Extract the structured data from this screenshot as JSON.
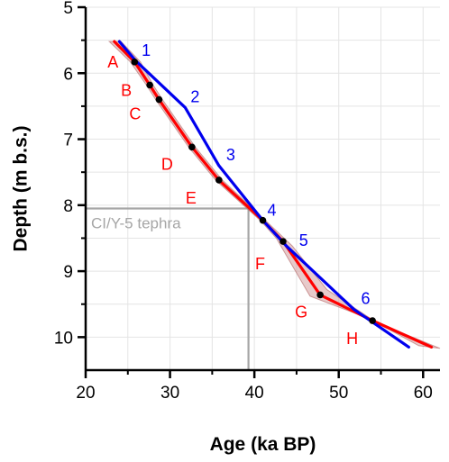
{
  "chart_data": {
    "type": "line",
    "xlabel": "Age (ka BP)",
    "ylabel": "Depth (m b.s.)",
    "xlim": [
      20,
      62
    ],
    "ylim": [
      5,
      10.5
    ],
    "y_inverted": true,
    "grid": true,
    "x_ticks": [
      20,
      30,
      40,
      50,
      60
    ],
    "y_ticks": [
      5,
      6,
      7,
      8,
      9,
      10
    ],
    "series": [
      {
        "color": "#0000ee",
        "points": [
          {
            "x": 24.0,
            "y": 5.52
          },
          {
            "x": 26.0,
            "y": 5.82
          },
          {
            "x": 31.8,
            "y": 6.52
          },
          {
            "x": 35.8,
            "y": 7.4
          },
          {
            "x": 41.0,
            "y": 8.23
          },
          {
            "x": 43.8,
            "y": 8.62
          },
          {
            "x": 51.8,
            "y": 9.58
          },
          {
            "x": 58.3,
            "y": 10.15
          }
        ],
        "labels": [
          {
            "text": "1",
            "x": 26.0,
            "y": 5.82
          },
          {
            "text": "2",
            "x": 31.8,
            "y": 6.52
          },
          {
            "text": "3",
            "x": 35.8,
            "y": 7.4
          },
          {
            "text": "4",
            "x": 41.0,
            "y": 8.23
          },
          {
            "text": "5",
            "x": 43.8,
            "y": 8.62
          },
          {
            "text": "6",
            "x": 51.8,
            "y": 9.58
          }
        ]
      },
      {
        "color": "#ff0000",
        "points": [
          {
            "x": 23.4,
            "y": 5.52
          },
          {
            "x": 25.8,
            "y": 5.83
          },
          {
            "x": 27.6,
            "y": 6.18
          },
          {
            "x": 28.7,
            "y": 6.4
          },
          {
            "x": 32.6,
            "y": 7.12
          },
          {
            "x": 35.8,
            "y": 7.62
          },
          {
            "x": 41.0,
            "y": 8.23
          },
          {
            "x": 43.4,
            "y": 8.55
          },
          {
            "x": 47.8,
            "y": 9.36
          },
          {
            "x": 54.0,
            "y": 9.75
          },
          {
            "x": 61.0,
            "y": 10.15
          }
        ],
        "markers": [
          {
            "x": 25.8,
            "y": 5.83
          },
          {
            "x": 27.6,
            "y": 6.18
          },
          {
            "x": 28.7,
            "y": 6.4
          },
          {
            "x": 32.6,
            "y": 7.12
          },
          {
            "x": 35.8,
            "y": 7.62
          },
          {
            "x": 41.0,
            "y": 8.23
          },
          {
            "x": 43.4,
            "y": 8.55
          },
          {
            "x": 47.8,
            "y": 9.36
          },
          {
            "x": 54.0,
            "y": 9.75
          }
        ],
        "labels": [
          {
            "text": "A",
            "x": 25.8,
            "y": 5.83
          },
          {
            "text": "B",
            "x": 27.6,
            "y": 6.18
          },
          {
            "text": "C",
            "x": 28.7,
            "y": 6.4
          },
          {
            "text": "D",
            "x": 32.6,
            "y": 7.12
          },
          {
            "text": "E",
            "x": 35.8,
            "y": 7.62
          },
          {
            "text": "F",
            "x": 43.4,
            "y": 8.55
          },
          {
            "text": "G",
            "x": 47.8,
            "y": 9.36
          },
          {
            "text": "H",
            "x": 54.0,
            "y": 9.75
          }
        ]
      }
    ],
    "uncertainty_band": {
      "color": "#c98a8a",
      "upper": [
        {
          "x": 22.8,
          "y": 5.52
        },
        {
          "x": 25.3,
          "y": 5.83
        },
        {
          "x": 27.2,
          "y": 6.18
        },
        {
          "x": 28.3,
          "y": 6.4
        },
        {
          "x": 32.2,
          "y": 7.12
        },
        {
          "x": 35.4,
          "y": 7.62
        },
        {
          "x": 40.7,
          "y": 8.23
        },
        {
          "x": 42.6,
          "y": 8.5
        },
        {
          "x": 46.6,
          "y": 9.38
        },
        {
          "x": 53.6,
          "y": 9.72
        },
        {
          "x": 59.5,
          "y": 10.13
        }
      ],
      "lower": [
        {
          "x": 24.2,
          "y": 5.52
        },
        {
          "x": 26.5,
          "y": 5.83
        },
        {
          "x": 28.0,
          "y": 6.18
        },
        {
          "x": 29.1,
          "y": 6.4
        },
        {
          "x": 33.0,
          "y": 7.12
        },
        {
          "x": 36.2,
          "y": 7.62
        },
        {
          "x": 41.3,
          "y": 8.23
        },
        {
          "x": 44.5,
          "y": 8.62
        },
        {
          "x": 48.6,
          "y": 9.28
        },
        {
          "x": 54.5,
          "y": 9.78
        },
        {
          "x": 62.0,
          "y": 10.17
        }
      ]
    },
    "annotation": {
      "text": "CI/Y-5 tephra",
      "x": 39.3,
      "y": 8.05,
      "color": "#a6a6a6"
    }
  }
}
